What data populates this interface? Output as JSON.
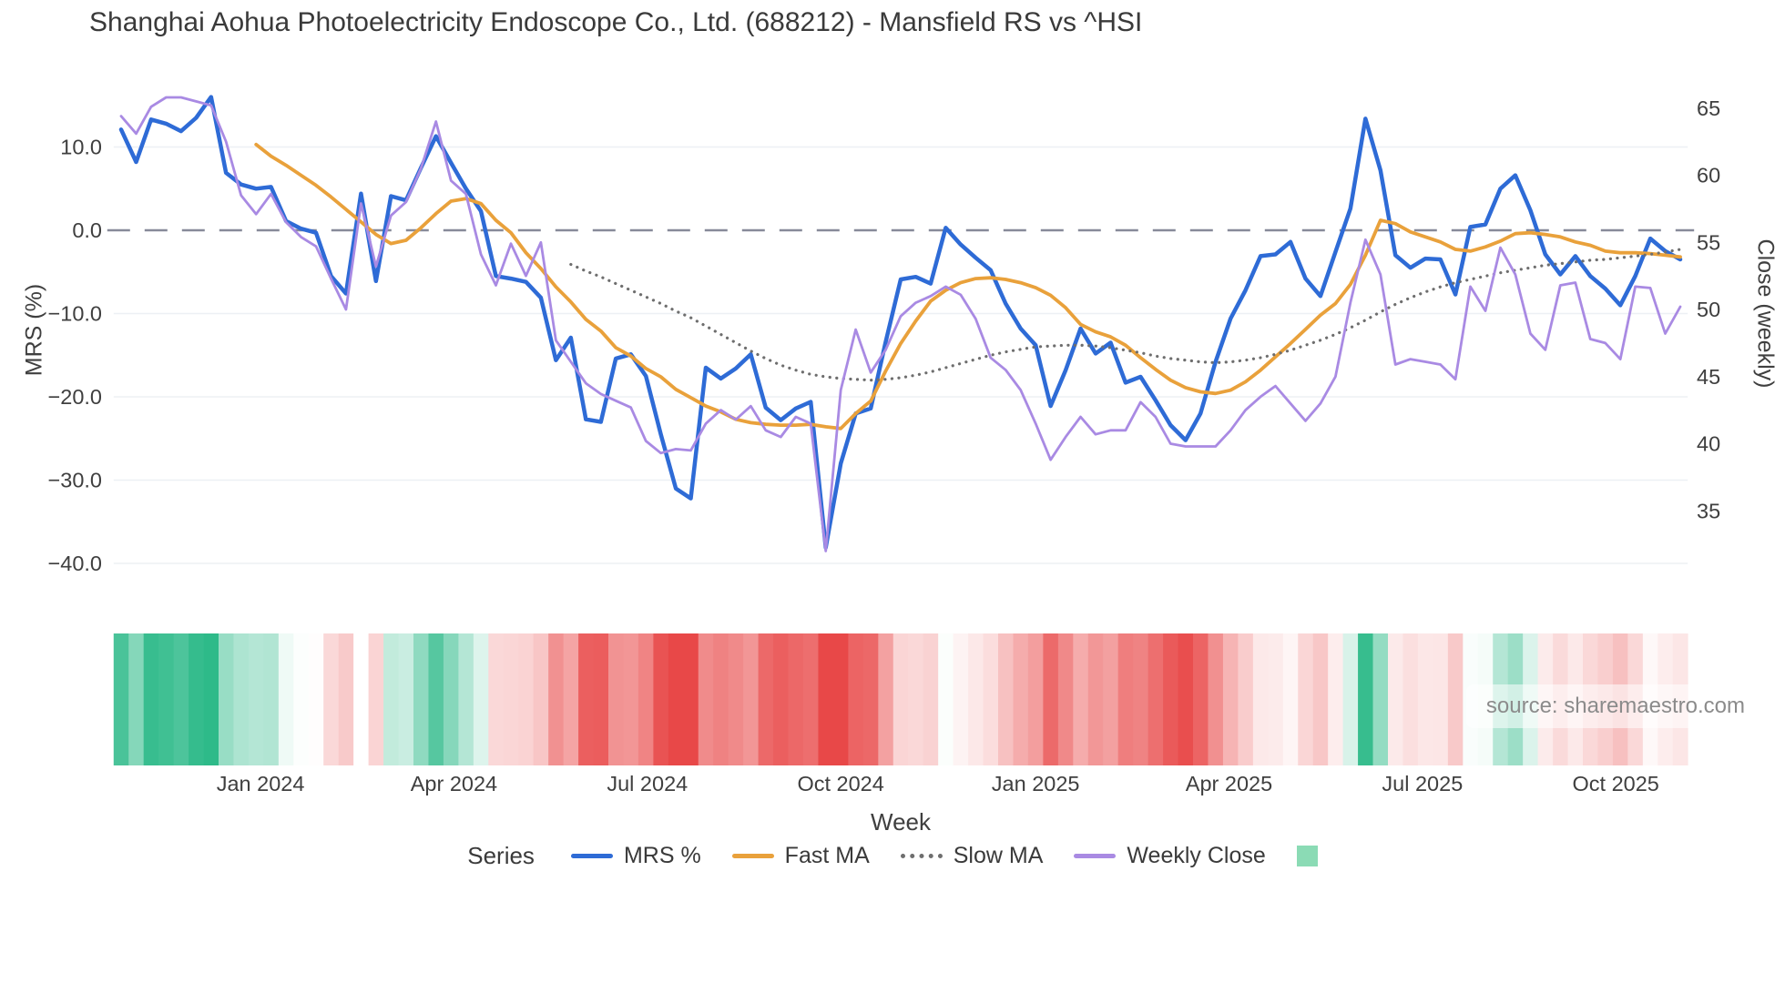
{
  "title": "Shanghai Aohua Photoelectricity Endoscope Co., Ltd. (688212) - Mansfield RS vs ^HSI",
  "axes": {
    "y_left": {
      "label": "MRS (%)",
      "ticks": [
        "10.0",
        "0.0",
        "−10.0",
        "−20.0",
        "−30.0",
        "−40.0"
      ],
      "tick_values": [
        10,
        0,
        -10,
        -20,
        -30,
        -40
      ]
    },
    "y_right": {
      "label": "Close (weekly)",
      "ticks": [
        "65",
        "60",
        "55",
        "50",
        "45",
        "40",
        "35"
      ],
      "tick_values": [
        65,
        60,
        55,
        50,
        45,
        40,
        35
      ]
    },
    "x": {
      "label": "Week",
      "ticks": [
        {
          "label": "Jan 2024",
          "week": 9.3
        },
        {
          "label": "Apr 2024",
          "week": 22.2
        },
        {
          "label": "Jul 2024",
          "week": 35.1
        },
        {
          "label": "Oct 2024",
          "week": 48.0
        },
        {
          "label": "Jan 2025",
          "week": 61.0
        },
        {
          "label": "Apr 2025",
          "week": 73.9
        },
        {
          "label": "Jul 2025",
          "week": 86.8
        },
        {
          "label": "Oct 2025",
          "week": 99.7
        }
      ]
    }
  },
  "legend": {
    "heading": "Series",
    "entries": [
      {
        "label": "MRS %",
        "color": "#2e6bd6",
        "style": "solid"
      },
      {
        "label": "Fast MA",
        "color": "#e9a13b",
        "style": "solid"
      },
      {
        "label": "Slow MA",
        "color": "#6e6e6e",
        "style": "dotted"
      },
      {
        "label": "Weekly Close",
        "color": "#a98ae3",
        "style": "solid"
      }
    ],
    "heat_swatch_color": "#8bdbb5"
  },
  "source": "source: sharemaestro.com",
  "colors": {
    "grid": "#edf0f4",
    "zero_dash": "#878a99",
    "axis_text": "#3f3f3f",
    "heat_positive": "#2eba89",
    "heat_negative": "#e84848"
  },
  "chart_data": {
    "type": "line",
    "title": "Shanghai Aohua Photoelectricity Endoscope Co., Ltd. (688212) - Mansfield RS vs ^HSI",
    "xlabel": "Week",
    "x_range": "weekly points, late Oct 2023 – early Nov 2025 (105 weeks)",
    "ylabel_left": "MRS (%)",
    "ylabel_right": "Close (weekly)",
    "ylim_left": [
      -42,
      18
    ],
    "ylim_right": [
      29.5,
      68.5
    ],
    "grid": true,
    "legend_position": "bottom",
    "zero_line": {
      "axis": "left",
      "value": 0,
      "style": "dashed"
    },
    "series": [
      {
        "name": "MRS %",
        "axis": "left",
        "color": "#2e6bd6",
        "style": "solid",
        "width": 4.5,
        "values": [
          12.1,
          8.2,
          13.3,
          12.8,
          11.9,
          13.5,
          16.0,
          6.9,
          5.5,
          5.0,
          5.2,
          1.1,
          0.2,
          -0.3,
          -5.5,
          -7.6,
          4.4,
          -6.1,
          4.1,
          3.6,
          7.5,
          11.3,
          8.1,
          5.0,
          2.3,
          -5.5,
          -5.8,
          -6.2,
          -8.1,
          -15.6,
          -12.9,
          -22.7,
          -23.0,
          -15.4,
          -14.9,
          -17.5,
          -24.5,
          -31.0,
          -32.2,
          -16.5,
          -17.8,
          -16.6,
          -14.9,
          -21.3,
          -22.8,
          -21.4,
          -20.6,
          -38.1,
          -28.0,
          -22.0,
          -21.4,
          -13.4,
          -5.9,
          -5.6,
          -6.4,
          0.3,
          -1.7,
          -3.3,
          -4.8,
          -8.8,
          -11.8,
          -13.8,
          -21.1,
          -16.8,
          -11.8,
          -14.8,
          -13.5,
          -18.3,
          -17.6,
          -20.4,
          -23.4,
          -25.2,
          -22.0,
          -15.8,
          -10.6,
          -7.2,
          -3.1,
          -2.9,
          -1.4,
          -5.8,
          -7.9,
          -2.6,
          2.6,
          13.4,
          7.2,
          -3.0,
          -4.5,
          -3.4,
          -3.5,
          -7.7,
          0.4,
          0.7,
          5.0,
          6.6,
          2.4,
          -2.9,
          -5.3,
          -3.1,
          -5.5,
          -7.0,
          -9.0,
          -5.5,
          -1.0,
          -2.5,
          -3.5
        ]
      },
      {
        "name": "Fast MA",
        "axis": "left",
        "color": "#e9a13b",
        "style": "solid",
        "width": 3.8,
        "values": [
          null,
          null,
          null,
          null,
          null,
          null,
          null,
          null,
          null,
          10.3,
          8.9,
          7.8,
          6.6,
          5.4,
          4.0,
          2.5,
          1.0,
          -0.5,
          -1.6,
          -1.2,
          0.3,
          2.0,
          3.5,
          3.8,
          3.2,
          1.2,
          -0.3,
          -2.7,
          -4.6,
          -6.8,
          -8.6,
          -10.7,
          -12.1,
          -14.1,
          -15.1,
          -16.6,
          -17.6,
          -19.1,
          -20.1,
          -21.1,
          -21.8,
          -22.7,
          -23.1,
          -23.3,
          -23.4,
          -23.4,
          -23.3,
          -23.6,
          -23.8,
          -22.0,
          -20.5,
          -16.9,
          -13.6,
          -10.9,
          -8.5,
          -7.2,
          -6.3,
          -5.8,
          -5.7,
          -5.9,
          -6.3,
          -6.9,
          -7.8,
          -9.3,
          -11.3,
          -12.2,
          -12.8,
          -13.8,
          -15.3,
          -16.7,
          -18.0,
          -18.9,
          -19.4,
          -19.6,
          -19.2,
          -18.2,
          -16.8,
          -15.2,
          -13.6,
          -11.9,
          -10.2,
          -8.8,
          -6.5,
          -3.0,
          1.2,
          0.8,
          -0.2,
          -0.8,
          -1.4,
          -2.3,
          -2.5,
          -2.0,
          -1.3,
          -0.4,
          -0.3,
          -0.5,
          -0.8,
          -1.4,
          -1.8,
          -2.5,
          -2.7,
          -2.7,
          -2.8,
          -3.0,
          -3.2
        ]
      },
      {
        "name": "Slow MA",
        "axis": "left",
        "color": "#6e6e6e",
        "style": "dotted",
        "width": 3.2,
        "values": [
          null,
          null,
          null,
          null,
          null,
          null,
          null,
          null,
          null,
          null,
          null,
          null,
          null,
          null,
          null,
          null,
          null,
          null,
          null,
          null,
          null,
          null,
          null,
          null,
          null,
          null,
          null,
          null,
          null,
          null,
          -4.1,
          -4.9,
          -5.6,
          -6.4,
          -7.2,
          -8.0,
          -8.8,
          -9.7,
          -10.5,
          -11.5,
          -12.5,
          -13.5,
          -14.5,
          -15.4,
          -16.2,
          -16.8,
          -17.3,
          -17.6,
          -17.8,
          -17.9,
          -18.0,
          -17.9,
          -17.7,
          -17.4,
          -17.0,
          -16.5,
          -16.0,
          -15.5,
          -15.0,
          -14.6,
          -14.3,
          -14.0,
          -13.9,
          -13.8,
          -13.8,
          -13.9,
          -14.1,
          -14.4,
          -14.7,
          -15.1,
          -15.4,
          -15.6,
          -15.8,
          -15.9,
          -15.8,
          -15.6,
          -15.3,
          -14.9,
          -14.4,
          -13.8,
          -13.2,
          -12.5,
          -11.7,
          -10.8,
          -9.8,
          -8.9,
          -8.1,
          -7.4,
          -6.8,
          -6.3,
          -5.9,
          -5.5,
          -5.1,
          -4.8,
          -4.5,
          -4.2,
          -4.0,
          -3.8,
          -3.6,
          -3.5,
          -3.3,
          -3.1,
          -2.9,
          -2.6,
          -2.3
        ]
      },
      {
        "name": "Weekly Close",
        "axis": "right",
        "color": "#a98ae3",
        "style": "solid",
        "width": 2.8,
        "values": [
          64.4,
          63.1,
          65.1,
          65.8,
          65.8,
          65.5,
          65.2,
          62.5,
          58.5,
          57.1,
          58.6,
          56.5,
          55.4,
          54.7,
          52.3,
          50.0,
          57.9,
          53.2,
          57.0,
          58.0,
          60.5,
          64.0,
          59.6,
          58.6,
          54.1,
          51.8,
          54.9,
          52.5,
          55.0,
          47.7,
          46.1,
          44.5,
          43.7,
          43.2,
          42.7,
          40.2,
          39.3,
          39.6,
          39.5,
          41.5,
          42.5,
          41.8,
          42.8,
          41.0,
          40.5,
          42.0,
          41.5,
          32.0,
          44.0,
          48.5,
          45.3,
          47.0,
          49.5,
          50.5,
          51.0,
          51.7,
          51.1,
          49.3,
          46.4,
          45.5,
          44.0,
          41.5,
          38.8,
          40.5,
          42.0,
          40.7,
          41.0,
          41.0,
          43.1,
          42.0,
          40.0,
          39.8,
          39.8,
          39.8,
          41.0,
          42.5,
          43.5,
          44.3,
          43.0,
          41.7,
          43.0,
          45.0,
          50.5,
          55.2,
          52.6,
          45.9,
          46.3,
          46.1,
          45.9,
          44.8,
          51.7,
          49.9,
          54.6,
          52.6,
          48.2,
          47.0,
          51.8,
          52.0,
          47.8,
          47.5,
          46.3,
          51.7,
          51.6,
          48.2,
          50.2
        ]
      }
    ],
    "heatmap": {
      "description": "weekly strip below plot, green = positive MRS, red = negative MRS, colored from the MRS % series",
      "positive_color": "#2eba89",
      "negative_color": "#e84848",
      "positive_saturation_cap": 14,
      "negative_saturation_cap": 26,
      "missing_week_index": 16
    }
  }
}
